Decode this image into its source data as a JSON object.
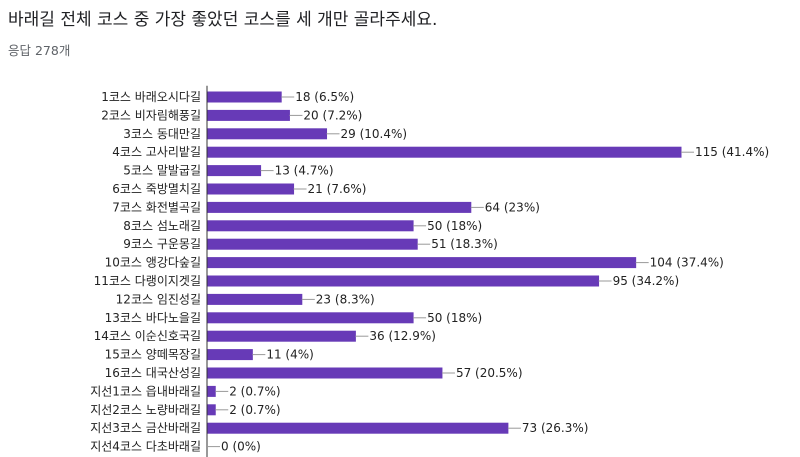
{
  "title": "바래길 전체 코스 중 가장 좋았던 코스를 세 개만 골라주세요.",
  "response_count": "응답 278개",
  "colors": {
    "bar": "#673ab7",
    "axis": "#333333",
    "leader": "#999999"
  },
  "chart_data": {
    "type": "bar",
    "orientation": "horizontal",
    "title": "",
    "xlabel": "",
    "ylabel": "",
    "xlim": [
      0,
      115
    ],
    "grid": false,
    "categories": [
      "1코스 바래오시다길",
      "2코스 비자림해풍길",
      "3코스 동대만길",
      "4코스 고사리밭길",
      "5코스 말발굽길",
      "6코스 죽방멸치길",
      "7코스 화전별곡길",
      "8코스 섬노래길",
      "9코스 구운몽길",
      "10코스 앵강다숲길",
      "11코스 다랭이지겟길",
      "12코스 임진성길",
      "13코스 바다노을길",
      "14코스 이순신호국길",
      "15코스 양떼목장길",
      "16코스 대국산성길",
      "지선1코스 읍내바래길",
      "지선2코스 노량바래길",
      "지선3코스 금산바래길",
      "지선4코스 다초바래길"
    ],
    "values": [
      18,
      20,
      29,
      115,
      13,
      21,
      64,
      50,
      51,
      104,
      95,
      23,
      50,
      36,
      11,
      57,
      2,
      2,
      73,
      0
    ],
    "data_labels": [
      "18 (6.5%)",
      "20 (7.2%)",
      "29 (10.4%)",
      "115 (41.4%)",
      "13 (4.7%)",
      "21 (7.6%)",
      "64 (23%)",
      "50 (18%)",
      "51 (18.3%)",
      "104 (37.4%)",
      "95 (34.2%)",
      "23 (8.3%)",
      "50 (18%)",
      "36 (12.9%)",
      "11 (4%)",
      "57 (20.5%)",
      "2 (0.7%)",
      "2 (0.7%)",
      "73 (26.3%)",
      "0 (0%)"
    ]
  }
}
